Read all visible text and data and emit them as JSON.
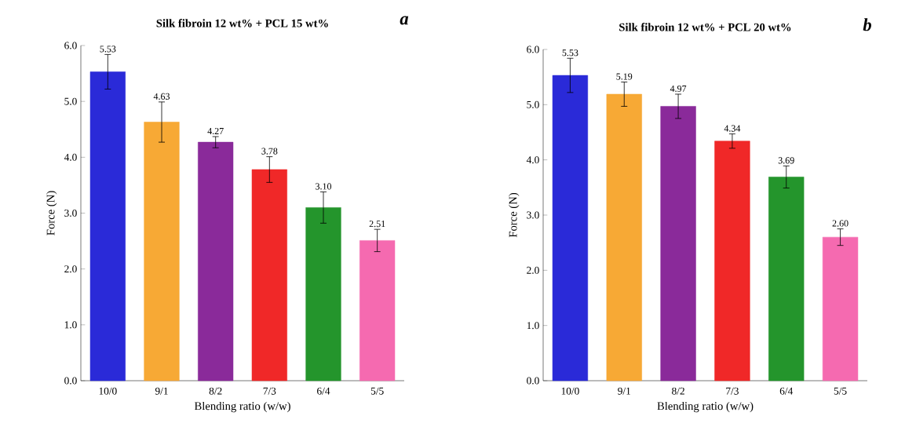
{
  "chart_data": [
    {
      "type": "bar",
      "title": "Silk fibroin 12 wt% + PCL 15 wt%",
      "xlabel": "Blending ratio (w/w)",
      "ylabel": "Force  (N)",
      "annotations": [
        "a"
      ],
      "categories": [
        "10/0",
        "9/1",
        "8/2",
        "7/3",
        "6/4",
        "5/5"
      ],
      "values": [
        5.53,
        4.63,
        4.27,
        3.78,
        3.1,
        2.51
      ],
      "value_labels": [
        "5.53",
        "4.63",
        "4.27",
        "3.78",
        "3.10",
        "2.51"
      ],
      "errors": [
        0.31,
        0.36,
        0.1,
        0.23,
        0.28,
        0.2
      ],
      "colors": [
        "#2a2ad8",
        "#f7a935",
        "#8a2a9a",
        "#f02828",
        "#24952c",
        "#f56ab0"
      ],
      "ylim": [
        0,
        6
      ],
      "yticks": [
        {
          "value": 0,
          "label": "0.0"
        },
        {
          "value": 1,
          "label": "1.0"
        },
        {
          "value": 2,
          "label": "2.0"
        },
        {
          "value": 3,
          "label": "3.0"
        },
        {
          "value": 4,
          "label": "4.0"
        },
        {
          "value": 5,
          "label": "5.0"
        },
        {
          "value": 6,
          "label": "6.0"
        }
      ]
    },
    {
      "type": "bar",
      "title": "Silk fibroin 12 wt% + PCL 20 wt%",
      "xlabel": "Blending ratio (w/w)",
      "ylabel": "Force  (N)",
      "annotations": [
        "b"
      ],
      "categories": [
        "10/0",
        "9/1",
        "8/2",
        "7/3",
        "6/4",
        "5/5"
      ],
      "values": [
        5.53,
        5.19,
        4.97,
        4.34,
        3.69,
        2.6
      ],
      "value_labels": [
        "5.53",
        "5.19",
        "4.97",
        "4.34",
        "3.69",
        "2.60"
      ],
      "errors": [
        0.31,
        0.22,
        0.22,
        0.13,
        0.2,
        0.15
      ],
      "colors": [
        "#2a2ad8",
        "#f7a935",
        "#8a2a9a",
        "#f02828",
        "#24952c",
        "#f56ab0"
      ],
      "ylim": [
        0,
        6
      ],
      "yticks": [
        {
          "value": 0,
          "label": "0.0"
        },
        {
          "value": 1,
          "label": "1.0"
        },
        {
          "value": 2,
          "label": "2.0"
        },
        {
          "value": 3,
          "label": "3.0"
        },
        {
          "value": 4,
          "label": "4.0"
        },
        {
          "value": 5,
          "label": "5.0"
        },
        {
          "value": 6,
          "label": "6.0"
        }
      ]
    }
  ]
}
